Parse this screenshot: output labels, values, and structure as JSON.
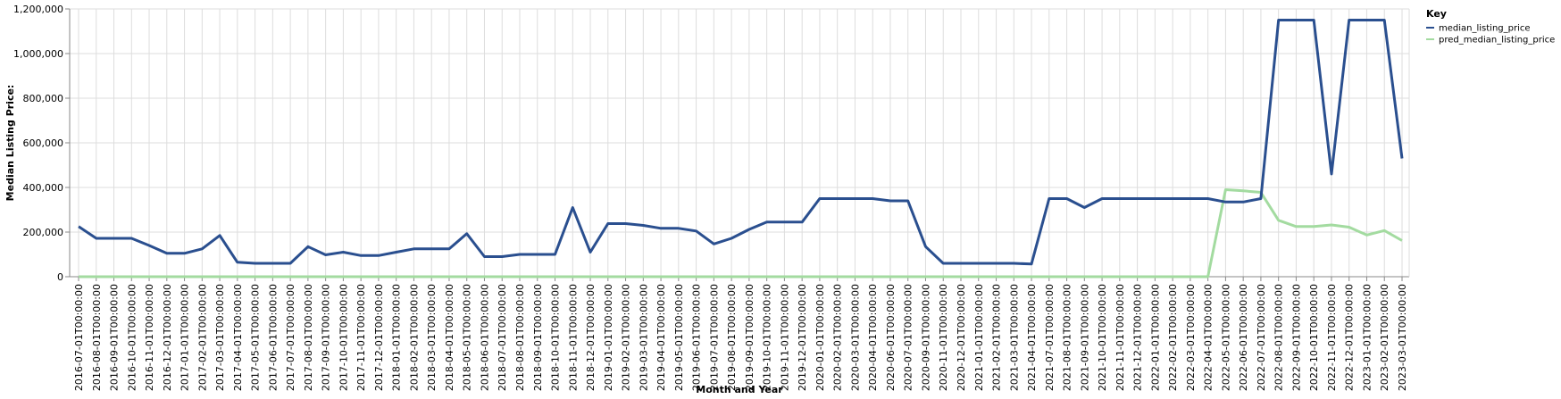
{
  "chart_data": {
    "type": "line",
    "xlabel": "Month and Year",
    "ylabel": "Median Listing Price:",
    "ylim": [
      0,
      1200000
    ],
    "yticks": [
      0,
      200000,
      400000,
      600000,
      800000,
      1000000,
      1200000
    ],
    "grid": true,
    "legend": {
      "title": "Key",
      "placement": "right-top"
    },
    "colors": {
      "median_listing_price": "#2a4f8f",
      "pred_median_listing_price": "#a3dba0"
    },
    "x": [
      "2016-07-01T00:00:00",
      "2016-08-01T00:00:00",
      "2016-09-01T00:00:00",
      "2016-10-01T00:00:00",
      "2016-11-01T00:00:00",
      "2016-12-01T00:00:00",
      "2017-01-01T00:00:00",
      "2017-02-01T00:00:00",
      "2017-03-01T00:00:00",
      "2017-04-01T00:00:00",
      "2017-05-01T00:00:00",
      "2017-06-01T00:00:00",
      "2017-07-01T00:00:00",
      "2017-08-01T00:00:00",
      "2017-09-01T00:00:00",
      "2017-10-01T00:00:00",
      "2017-11-01T00:00:00",
      "2017-12-01T00:00:00",
      "2018-01-01T00:00:00",
      "2018-02-01T00:00:00",
      "2018-03-01T00:00:00",
      "2018-04-01T00:00:00",
      "2018-05-01T00:00:00",
      "2018-06-01T00:00:00",
      "2018-07-01T00:00:00",
      "2018-08-01T00:00:00",
      "2018-09-01T00:00:00",
      "2018-10-01T00:00:00",
      "2018-11-01T00:00:00",
      "2018-12-01T00:00:00",
      "2019-01-01T00:00:00",
      "2019-02-01T00:00:00",
      "2019-03-01T00:00:00",
      "2019-04-01T00:00:00",
      "2019-05-01T00:00:00",
      "2019-06-01T00:00:00",
      "2019-07-01T00:00:00",
      "2019-08-01T00:00:00",
      "2019-09-01T00:00:00",
      "2019-10-01T00:00:00",
      "2019-11-01T00:00:00",
      "2019-12-01T00:00:00",
      "2020-01-01T00:00:00",
      "2020-02-01T00:00:00",
      "2020-03-01T00:00:00",
      "2020-04-01T00:00:00",
      "2020-06-01T00:00:00",
      "2020-07-01T00:00:00",
      "2020-09-01T00:00:00",
      "2020-11-01T00:00:00",
      "2020-12-01T00:00:00",
      "2021-01-01T00:00:00",
      "2021-02-01T00:00:00",
      "2021-03-01T00:00:00",
      "2021-04-01T00:00:00",
      "2021-07-01T00:00:00",
      "2021-08-01T00:00:00",
      "2021-09-01T00:00:00",
      "2021-10-01T00:00:00",
      "2021-11-01T00:00:00",
      "2021-12-01T00:00:00",
      "2022-01-01T00:00:00",
      "2022-02-01T00:00:00",
      "2022-03-01T00:00:00",
      "2022-04-01T00:00:00",
      "2022-05-01T00:00:00",
      "2022-06-01T00:00:00",
      "2022-07-01T00:00:00",
      "2022-08-01T00:00:00",
      "2022-09-01T00:00:00",
      "2022-10-01T00:00:00",
      "2022-11-01T00:00:00",
      "2022-12-01T00:00:00",
      "2023-01-01T00:00:00",
      "2023-02-01T00:00:00",
      "2023-03-01T00:00:00"
    ],
    "series": [
      {
        "name": "median_listing_price",
        "values": [
          225000,
          172000,
          172000,
          172000,
          140000,
          105000,
          105000,
          125000,
          185000,
          65000,
          60000,
          60000,
          60000,
          135000,
          98000,
          110000,
          95000,
          95000,
          110000,
          125000,
          125000,
          125000,
          193000,
          90000,
          90000,
          100000,
          100000,
          100000,
          310000,
          110000,
          238000,
          238000,
          230000,
          217000,
          217000,
          205000,
          147000,
          172000,
          212000,
          245000,
          245000,
          245000,
          350000,
          350000,
          350000,
          350000,
          340000,
          340000,
          135000,
          60000,
          60000,
          60000,
          60000,
          60000,
          57000,
          350000,
          350000,
          310000,
          350000,
          350000,
          350000,
          350000,
          350000,
          350000,
          350000,
          335000,
          335000,
          350000,
          1150000,
          1150000,
          1150000,
          460000,
          1150000,
          1150000,
          1150000,
          530000
        ]
      },
      {
        "name": "pred_median_listing_price",
        "values": [
          0,
          0,
          0,
          0,
          0,
          0,
          0,
          0,
          0,
          0,
          0,
          0,
          0,
          0,
          0,
          0,
          0,
          0,
          0,
          0,
          0,
          0,
          0,
          0,
          0,
          0,
          0,
          0,
          0,
          0,
          0,
          0,
          0,
          0,
          0,
          0,
          0,
          0,
          0,
          0,
          0,
          0,
          0,
          0,
          0,
          0,
          0,
          0,
          0,
          0,
          0,
          0,
          0,
          0,
          0,
          0,
          0,
          0,
          0,
          0,
          0,
          0,
          0,
          0,
          0,
          390000,
          385000,
          378000,
          253000,
          225000,
          225000,
          232000,
          222000,
          187000,
          207000,
          162000
        ]
      }
    ]
  }
}
